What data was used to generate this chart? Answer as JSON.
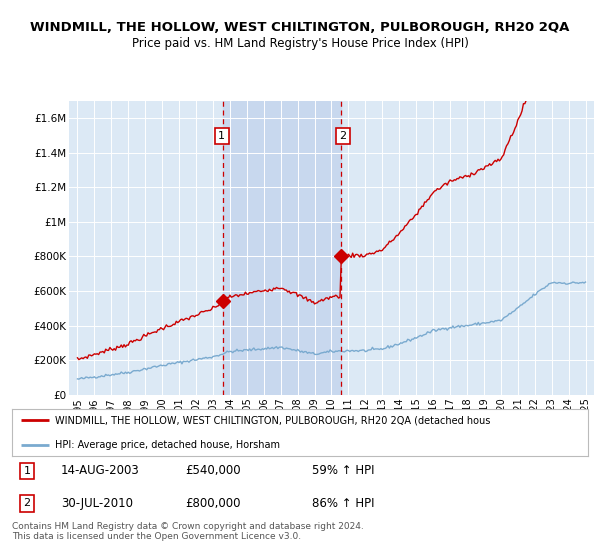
{
  "title": "WINDMILL, THE HOLLOW, WEST CHILTINGTON, PULBOROUGH, RH20 2QA",
  "subtitle": "Price paid vs. HM Land Registry's House Price Index (HPI)",
  "title_fontsize": 9.5,
  "subtitle_fontsize": 8.5,
  "bg_color": "#ffffff",
  "plot_bg_color": "#dce9f5",
  "highlight_color": "#c8d8ee",
  "grid_color": "#ffffff",
  "red_line_color": "#cc0000",
  "blue_line_color": "#7aaacf",
  "sale1_year": 2003.62,
  "sale1_price": 540000,
  "sale2_year": 2010.58,
  "sale2_price": 800000,
  "vline_color": "#cc0000",
  "marker_color": "#cc0000",
  "xlim": [
    1994.5,
    2025.5
  ],
  "ylim": [
    0,
    1700000
  ],
  "yticks": [
    0,
    200000,
    400000,
    600000,
    800000,
    1000000,
    1200000,
    1400000,
    1600000
  ],
  "ytick_labels": [
    "£0",
    "£200K",
    "£400K",
    "£600K",
    "£800K",
    "£1M",
    "£1.2M",
    "£1.4M",
    "£1.6M"
  ],
  "xticks": [
    1995,
    1996,
    1997,
    1998,
    1999,
    2000,
    2001,
    2002,
    2003,
    2004,
    2005,
    2006,
    2007,
    2008,
    2009,
    2010,
    2011,
    2012,
    2013,
    2014,
    2015,
    2016,
    2017,
    2018,
    2019,
    2020,
    2021,
    2022,
    2023,
    2024,
    2025
  ],
  "legend_line1": "WINDMILL, THE HOLLOW, WEST CHILTINGTON, PULBOROUGH, RH20 2QA (detached hous",
  "legend_line2": "HPI: Average price, detached house, Horsham",
  "note1_date": "14-AUG-2003",
  "note1_price": "£540,000",
  "note1_hpi": "59% ↑ HPI",
  "note2_date": "30-JUL-2010",
  "note2_price": "£800,000",
  "note2_hpi": "86% ↑ HPI",
  "footer": "Contains HM Land Registry data © Crown copyright and database right 2024.\nThis data is licensed under the Open Government Licence v3.0."
}
